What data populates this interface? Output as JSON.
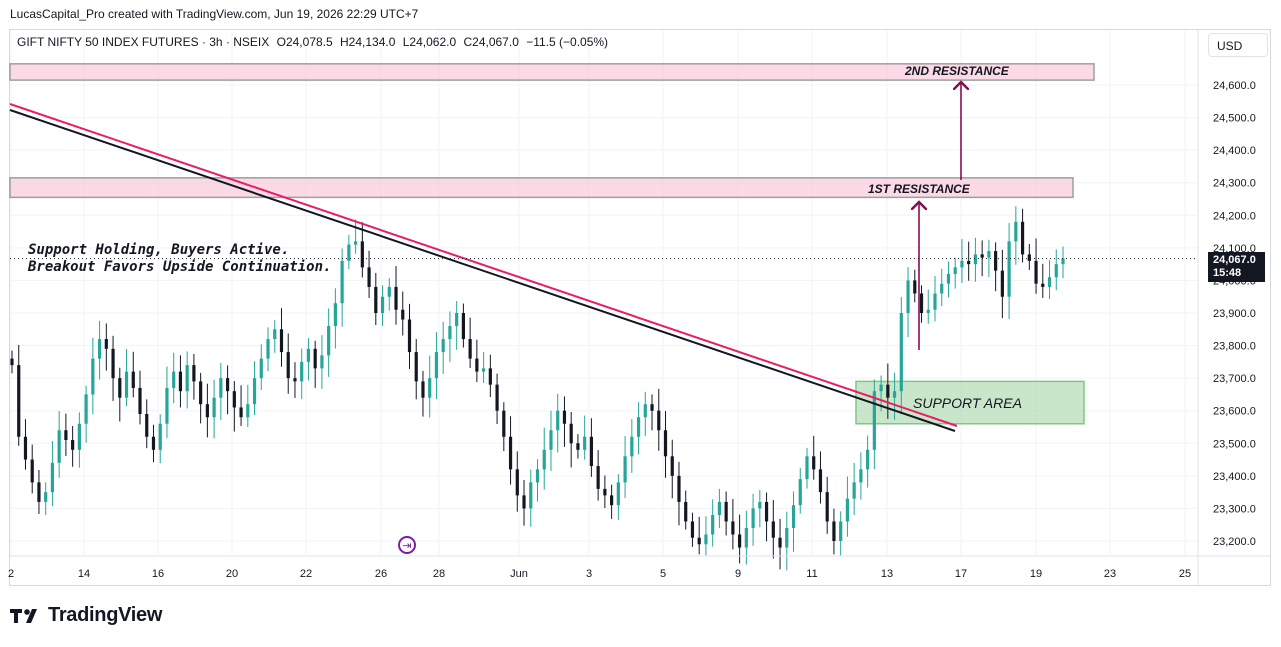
{
  "credit": "LucasCapital_Pro created with TradingView.com, Jun 19, 2026 22:29 UTC+7",
  "header": {
    "symbol": "GIFT NIFTY 50 INDEX FUTURES · 3h · NSEIX",
    "open": "O24,078.5",
    "high": "H24,134.0",
    "low": "L24,062.0",
    "close": "C24,067.0",
    "change": "−11.5 (−0.05%)"
  },
  "currency": "USD",
  "price_tag": {
    "price": "24,067.0",
    "countdown": "15:48"
  },
  "annotations": {
    "note_line1": "Support Holding, Buyers Active.",
    "note_line2": "Breakout Favors Upside Continuation.",
    "resistance1": "1ST RESISTANCE",
    "resistance2": "2ND RESISTANCE",
    "support": "SUPPORT AREA"
  },
  "brand": "TradingView",
  "colors": {
    "up": "#26a69a",
    "down": "#131722",
    "zone": "#f8bbd0",
    "support": "#a5d6a7",
    "trendline_pink": "#e91e63",
    "arrow": "#880e4f"
  },
  "chart_data": {
    "type": "candlestick",
    "y_axis": {
      "min": 23150,
      "max": 24700,
      "ticks": [
        23200,
        23300,
        23400,
        23500,
        23600,
        23700,
        23800,
        23900,
        24000,
        24100,
        24200,
        24300,
        24400,
        24500,
        24600
      ],
      "tick_labels": [
        "23,200.0",
        "23,300.0",
        "23,400.0",
        "23,500.0",
        "23,600.0",
        "23,700.0",
        "23,800.0",
        "23,900.0",
        "24,000.0",
        "24,100.0",
        "24,200.0",
        "24,300.0",
        "24,400.0",
        "24,500.0",
        "24,600.0"
      ]
    },
    "x_axis": {
      "tick_labels": [
        "2",
        "14",
        "16",
        "20",
        "22",
        "26",
        "28",
        "Jun",
        "3",
        "5",
        "9",
        "11",
        "13",
        "17",
        "19",
        "23",
        "25"
      ]
    },
    "last_price": 24067,
    "zones": [
      {
        "label": "2ND RESISTANCE",
        "from": 24615,
        "to": 24665
      },
      {
        "label": "1ST RESISTANCE",
        "from": 24255,
        "to": 24315
      },
      {
        "label": "SUPPORT AREA",
        "from": 23560,
        "to": 23690
      }
    ],
    "closes": [
      23740,
      23520,
      23450,
      23380,
      23320,
      23350,
      23440,
      23540,
      23510,
      23480,
      23560,
      23650,
      23760,
      23820,
      23790,
      23700,
      23640,
      23720,
      23670,
      23590,
      23520,
      23480,
      23560,
      23670,
      23720,
      23660,
      23740,
      23690,
      23620,
      23580,
      23640,
      23700,
      23660,
      23610,
      23580,
      23620,
      23700,
      23760,
      23820,
      23850,
      23780,
      23700,
      23690,
      23750,
      23790,
      23730,
      23770,
      23860,
      23930,
      24060,
      24110,
      24120,
      24040,
      23980,
      23900,
      23950,
      23980,
      23910,
      23880,
      23780,
      23690,
      23640,
      23700,
      23780,
      23820,
      23860,
      23900,
      23820,
      23760,
      23720,
      23730,
      23680,
      23600,
      23520,
      23420,
      23340,
      23300,
      23380,
      23420,
      23480,
      23540,
      23600,
      23560,
      23500,
      23480,
      23520,
      23430,
      23360,
      23340,
      23310,
      23380,
      23460,
      23520,
      23580,
      23620,
      23600,
      23540,
      23460,
      23400,
      23320,
      23260,
      23210,
      23190,
      23220,
      23280,
      23320,
      23260,
      23220,
      23180,
      23240,
      23300,
      23320,
      23260,
      23210,
      23180,
      23240,
      23310,
      23390,
      23460,
      23420,
      23350,
      23260,
      23200,
      23260,
      23330,
      23380,
      23420,
      23480,
      23660,
      23680,
      23640,
      23660,
      23900,
      24000,
      23960,
      23900,
      23910,
      23960,
      23990,
      24020,
      24040,
      24060,
      24050,
      24080,
      24070,
      24090,
      24030,
      23950,
      24120,
      24180,
      24080,
      24060,
      23990,
      23980,
      24010,
      24050,
      24067
    ]
  }
}
